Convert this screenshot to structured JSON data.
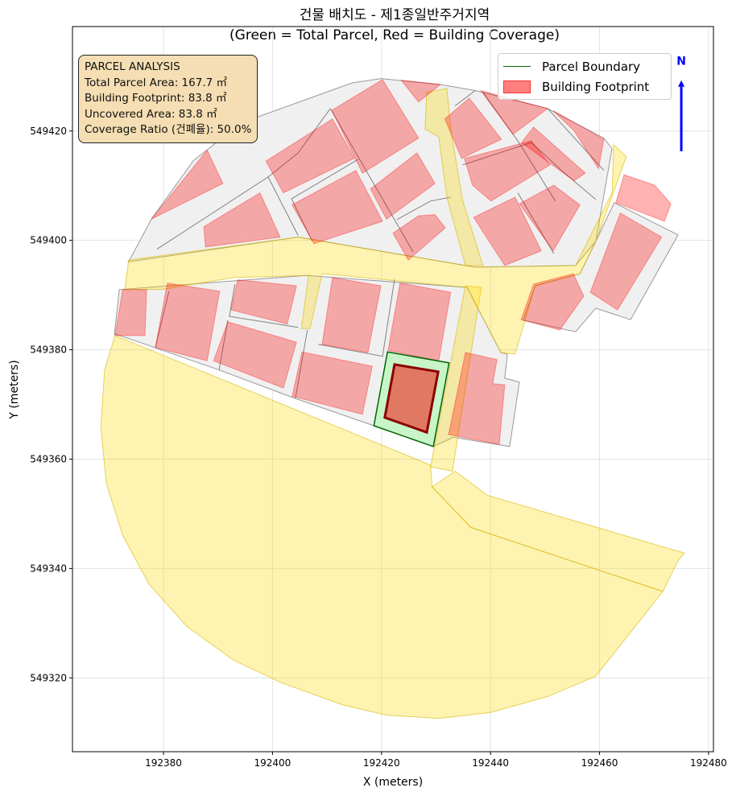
{
  "chart_data": {
    "type": "map-polygons",
    "title_line1": "건물 배치도 - 제1종일반주거지역",
    "title_line2": "(Green = Total Parcel, Red = Building Coverage)",
    "xlabel": "X (meters)",
    "ylabel": "Y (meters)",
    "xlim": [
      192363.3,
      192480.9
    ],
    "ylim": [
      549306.5,
      549439.1
    ],
    "xticks": [
      192380,
      192400,
      192420,
      192440,
      192460,
      192480
    ],
    "yticks": [
      549320,
      549340,
      549360,
      549380,
      549400,
      549420
    ],
    "grid": true,
    "legend_placement": "top-right",
    "legend": [
      {
        "label": "Parcel Boundary",
        "color": "#006400"
      },
      {
        "label": "Building Footprint",
        "color": "#ff0000"
      }
    ],
    "annotation": {
      "header": "PARCEL ANALYSIS",
      "lines": [
        "Total Parcel Area: 167.7 ㎡",
        "Building Footprint: 83.8 ㎡",
        "Uncovered Area: 83.8 ㎡",
        "Coverage Ratio (건폐율): 50.0%"
      ]
    },
    "metrics": {
      "total_parcel_area_m2": 167.7,
      "building_footprint_m2": 83.8,
      "uncovered_area_m2": 83.8,
      "coverage_ratio_pct": 50.0
    },
    "north_arrow": {
      "label": "N",
      "x": 192475.0,
      "y_from": 549416.3,
      "y_to": 549428.1,
      "label_y": 549433.0,
      "color": "#0000ff"
    },
    "colors": {
      "parcel_fill": "#c8f5c8",
      "parcel_edge": "#006400",
      "building_fill": "#e07862",
      "building_edge": "#8b0000",
      "context_parcel": "#f0f0f0",
      "road": "#ffd700",
      "context_building": "#ff0000"
    },
    "context_parcels": [
      [
        [
          192373.6,
          549396.1
        ],
        [
          192375.6,
          549399.8
        ],
        [
          192377.8,
          549403.9
        ],
        [
          192385.5,
          549414.6
        ],
        [
          192394.3,
          549421.5
        ],
        [
          192414.6,
          549428.8
        ],
        [
          192419.9,
          549429.6
        ],
        [
          192430.8,
          549428.5
        ],
        [
          192437.2,
          549427.4
        ],
        [
          192450.5,
          549424.1
        ],
        [
          192460.8,
          549418.7
        ],
        [
          192462.3,
          549416.8
        ],
        [
          192459.3,
          549399.8
        ],
        [
          192455.6,
          549395.4
        ],
        [
          192437.2,
          549395.1
        ],
        [
          192404.7,
          549400.6
        ]
      ],
      [
        [
          192462.7,
          549406.9
        ],
        [
          192474.4,
          549401.0
        ],
        [
          192465.7,
          549385.5
        ],
        [
          192459.3,
          549387.6
        ],
        [
          192455.6,
          549383.3
        ],
        [
          192446.0,
          549385.4
        ],
        [
          192448.2,
          549391.7
        ],
        [
          192456.4,
          549393.9
        ],
        [
          192459.3,
          549399.8
        ]
      ],
      [
        [
          192371.0,
          549382.9
        ],
        [
          192371.9,
          549391.0
        ],
        [
          192406.1,
          549393.6
        ],
        [
          192435.7,
          549391.4
        ],
        [
          192438.6,
          549385.8
        ],
        [
          192441.9,
          549379.5
        ],
        [
          192443.1,
          549379.2
        ],
        [
          192442.6,
          549374.8
        ],
        [
          192445.3,
          549374.1
        ],
        [
          192443.5,
          549362.3
        ],
        [
          192433.2,
          549364.0
        ],
        [
          192429.5,
          549362.3
        ],
        [
          192418.6,
          549366.1
        ],
        [
          192404.2,
          549371.1
        ],
        [
          192390.2,
          549376.3
        ],
        [
          192374.1,
          549381.9
        ]
      ]
    ],
    "parcel_lines": [
      [
        [
          192378.8,
          549398.4
        ],
        [
          192399.2,
          549411.6
        ],
        [
          192404.7,
          549416.0
        ],
        [
          192410.6,
          549424.1
        ]
      ],
      [
        [
          192399.2,
          549411.6
        ],
        [
          192404.7,
          549400.9
        ]
      ],
      [
        [
          192410.6,
          549424.1
        ],
        [
          192425.8,
          549397.9
        ]
      ],
      [
        [
          192407.3,
          549399.8
        ],
        [
          192403.5,
          549407.6
        ],
        [
          192415.7,
          549414.8
        ]
      ],
      [
        [
          192422.8,
          549403.8
        ],
        [
          192429.0,
          549407.2
        ],
        [
          192432.7,
          549407.9
        ]
      ],
      [
        [
          192434.9,
          549413.8
        ],
        [
          192447.5,
          549417.9
        ],
        [
          192453.0,
          549412.8
        ],
        [
          192459.3,
          549407.5
        ]
      ],
      [
        [
          192445.0,
          549408.7
        ],
        [
          192451.6,
          549397.6
        ]
      ],
      [
        [
          192433.5,
          549424.6
        ],
        [
          192437.2,
          549427.4
        ]
      ],
      [
        [
          192438.6,
          549427.1
        ],
        [
          192445.0,
          549418.2
        ],
        [
          192451.9,
          549407.2
        ]
      ],
      [
        [
          192450.5,
          549424.1
        ],
        [
          192460.8,
          549412.8
        ]
      ],
      [
        [
          192381.0,
          549390.7
        ],
        [
          192378.5,
          549380.4
        ]
      ],
      [
        [
          192393.1,
          549392.0
        ],
        [
          192392.1,
          549386.1
        ],
        [
          192404.7,
          549384.1
        ]
      ],
      [
        [
          192391.8,
          549385.4
        ],
        [
          192390.2,
          549376.3
        ]
      ],
      [
        [
          192406.4,
          549383.6
        ],
        [
          192404.2,
          549371.1
        ]
      ],
      [
        [
          192422.4,
          549392.9
        ],
        [
          192420.2,
          549378.8
        ],
        [
          192408.4,
          549381.0
        ]
      ]
    ],
    "roads": [
      [
        [
          192371.1,
          549382.6
        ],
        [
          192429.0,
          549358.9
        ],
        [
          192429.3,
          549354.9
        ],
        [
          192436.4,
          549347.5
        ],
        [
          192471.6,
          549335.8
        ],
        [
          192465.2,
          549327.7
        ],
        [
          192459.3,
          549320.3
        ],
        [
          192450.5,
          549316.6
        ],
        [
          192440.1,
          549313.7
        ],
        [
          192430.5,
          549312.6
        ],
        [
          192420.9,
          549313.2
        ],
        [
          192412.8,
          549315.1
        ],
        [
          192401.7,
          549319.1
        ],
        [
          192392.9,
          549323.2
        ],
        [
          192384.3,
          549329.4
        ],
        [
          192377.3,
          549337.2
        ],
        [
          192372.5,
          549346.1
        ],
        [
          192369.5,
          549355.6
        ],
        [
          192368.5,
          549365.9
        ],
        [
          192369.2,
          549376.3
        ]
      ],
      [
        [
          192433.5,
          549357.8
        ],
        [
          192439.4,
          549353.4
        ],
        [
          192475.6,
          549342.8
        ],
        [
          192474.5,
          549341.6
        ],
        [
          192471.6,
          549335.8
        ],
        [
          192436.4,
          549347.5
        ],
        [
          192429.3,
          549354.9
        ]
      ],
      [
        [
          192435.4,
          549391.7
        ],
        [
          192438.3,
          549391.4
        ],
        [
          192433.0,
          549357.8
        ],
        [
          192429.0,
          549358.6
        ]
      ],
      [
        [
          192373.6,
          549396.4
        ],
        [
          192404.7,
          549400.6
        ],
        [
          192437.2,
          549395.1
        ],
        [
          192455.6,
          549395.4
        ],
        [
          192462.3,
          549408.7
        ],
        [
          192462.6,
          549417.5
        ],
        [
          192464.9,
          549415.3
        ],
        [
          192459.3,
          549399.8
        ],
        [
          192456.4,
          549393.9
        ],
        [
          192448.2,
          549391.7
        ],
        [
          192444.5,
          549379.2
        ],
        [
          192441.9,
          549379.5
        ],
        [
          192438.6,
          549385.8
        ],
        [
          192435.7,
          549391.4
        ],
        [
          192409.1,
          549393.9
        ],
        [
          192406.9,
          549383.9
        ],
        [
          192405.3,
          549383.9
        ],
        [
          192406.6,
          549393.6
        ],
        [
          192392.9,
          549393.2
        ],
        [
          192379.6,
          549391.0
        ],
        [
          192372.9,
          549391.0
        ]
      ],
      [
        [
          192428.3,
          549427.1
        ],
        [
          192432.0,
          549427.8
        ],
        [
          192432.7,
          549420.4
        ],
        [
          192434.9,
          549407.2
        ],
        [
          192438.6,
          549395.4
        ],
        [
          192435.4,
          549395.4
        ],
        [
          192432.0,
          549407.9
        ],
        [
          192430.5,
          549418.9
        ],
        [
          192428.0,
          549420.4
        ]
      ]
    ],
    "context_buildings": [
      [
        [
          192377.8,
          549403.9
        ],
        [
          192388.0,
          549416.5
        ],
        [
          192390.9,
          549410.4
        ]
      ],
      [
        [
          192387.4,
          549402.5
        ],
        [
          192397.7,
          549408.7
        ],
        [
          192401.4,
          549400.6
        ],
        [
          192387.7,
          549398.8
        ]
      ],
      [
        [
          192398.8,
          549414.5
        ],
        [
          192411.0,
          549422.2
        ],
        [
          192415.0,
          549415.0
        ],
        [
          192402.0,
          549408.7
        ]
      ],
      [
        [
          192410.9,
          549423.8
        ],
        [
          192420.2,
          549429.4
        ],
        [
          192426.8,
          549418.7
        ],
        [
          192416.5,
          549412.3
        ]
      ],
      [
        [
          192403.6,
          549406.5
        ],
        [
          192415.3,
          549412.8
        ],
        [
          192420.2,
          549403.5
        ],
        [
          192407.6,
          549399.4
        ]
      ],
      [
        [
          192418.0,
          549409.4
        ],
        [
          192426.5,
          549416.0
        ],
        [
          192429.8,
          549410.4
        ],
        [
          192420.9,
          549403.9
        ]
      ],
      [
        [
          192422.1,
          549401.3
        ],
        [
          192426.8,
          549404.5
        ],
        [
          192429.8,
          549404.7
        ],
        [
          192431.7,
          549402.3
        ],
        [
          192424.9,
          549396.4
        ]
      ],
      [
        [
          192423.6,
          549429.3
        ],
        [
          192430.8,
          549428.5
        ],
        [
          192426.8,
          549425.3
        ]
      ],
      [
        [
          192431.6,
          549422.2
        ],
        [
          192436.1,
          549426.0
        ],
        [
          192442.0,
          549418.5
        ],
        [
          192434.7,
          549415.0
        ]
      ],
      [
        [
          192438.2,
          549427.4
        ],
        [
          192450.5,
          549424.1
        ],
        [
          192444.1,
          549419.4
        ]
      ],
      [
        [
          192435.2,
          549415.0
        ],
        [
          192447.5,
          549418.2
        ],
        [
          192450.9,
          549413.8
        ],
        [
          192440.1,
          549407.2
        ],
        [
          192436.7,
          549410.1
        ]
      ],
      [
        [
          192445.7,
          549417.9
        ],
        [
          192447.9,
          549420.7
        ],
        [
          192457.4,
          549412.3
        ],
        [
          192455.3,
          549410.9
        ]
      ],
      [
        [
          192451.5,
          549423.7
        ],
        [
          192460.8,
          549418.5
        ],
        [
          192459.8,
          549413.1
        ],
        [
          192455.3,
          549420.1
        ]
      ],
      [
        [
          192436.9,
          549404.2
        ],
        [
          192444.5,
          549407.9
        ],
        [
          192449.3,
          549398.1
        ],
        [
          192442.6,
          549395.4
        ]
      ],
      [
        [
          192445.3,
          549406.7
        ],
        [
          192451.6,
          549410.1
        ],
        [
          192456.4,
          549406.5
        ],
        [
          192451.5,
          549398.1
        ]
      ],
      [
        [
          192464.5,
          549412.0
        ],
        [
          192470.1,
          549410.1
        ],
        [
          192473.1,
          549406.7
        ],
        [
          192471.9,
          549403.5
        ],
        [
          192463.0,
          549406.9
        ]
      ],
      [
        [
          192463.8,
          549405.0
        ],
        [
          192471.4,
          549400.6
        ],
        [
          192463.3,
          549387.3
        ],
        [
          192458.3,
          549390.5
        ]
      ],
      [
        [
          192447.9,
          549392.0
        ],
        [
          192455.2,
          549393.9
        ],
        [
          192457.1,
          549389.8
        ],
        [
          192452.7,
          549383.6
        ],
        [
          192445.6,
          549385.5
        ]
      ],
      [
        [
          192372.5,
          549391.0
        ],
        [
          192376.9,
          549391.0
        ],
        [
          192376.6,
          549382.6
        ],
        [
          192371.1,
          549382.6
        ]
      ],
      [
        [
          192380.7,
          549392.2
        ],
        [
          192390.3,
          549390.7
        ],
        [
          192388.0,
          549378.0
        ],
        [
          192378.5,
          549380.4
        ]
      ],
      [
        [
          192393.6,
          549392.8
        ],
        [
          192404.4,
          549391.7
        ],
        [
          192402.7,
          549384.7
        ],
        [
          192392.4,
          549387.3
        ]
      ],
      [
        [
          192391.8,
          549385.1
        ],
        [
          192404.4,
          549381.4
        ],
        [
          192402.0,
          549373.0
        ],
        [
          192389.2,
          549378.0
        ]
      ],
      [
        [
          192405.4,
          549379.6
        ],
        [
          192418.3,
          549377.0
        ],
        [
          192416.5,
          549368.2
        ],
        [
          192403.6,
          549371.5
        ]
      ],
      [
        [
          192411.0,
          549393.2
        ],
        [
          192419.9,
          549391.7
        ],
        [
          192417.5,
          549379.5
        ],
        [
          192409.1,
          549381.0
        ]
      ],
      [
        [
          192423.4,
          549392.2
        ],
        [
          192432.7,
          549390.5
        ],
        [
          192430.5,
          549378.0
        ],
        [
          192421.2,
          549379.9
        ]
      ],
      [
        [
          192435.4,
          549379.5
        ],
        [
          192441.2,
          549378.2
        ],
        [
          192440.4,
          549373.8
        ],
        [
          192442.6,
          549373.6
        ],
        [
          192441.6,
          549362.7
        ],
        [
          192432.3,
          549364.5
        ]
      ]
    ],
    "target_parcel": [
      [
        192421.1,
        549379.6
      ],
      [
        192432.4,
        549377.6
      ],
      [
        192429.5,
        549362.3
      ],
      [
        192418.6,
        549366.1
      ]
    ],
    "target_building": [
      [
        192422.4,
        549377.3
      ],
      [
        192430.4,
        549376.0
      ],
      [
        192428.3,
        549364.9
      ],
      [
        192420.6,
        549367.6
      ]
    ]
  }
}
